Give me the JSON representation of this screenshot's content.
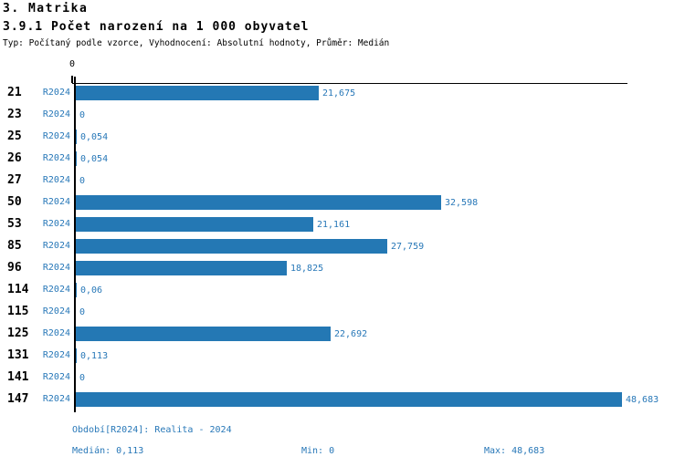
{
  "header": {
    "section_title": "3. Matrika",
    "chart_title": "3.9.1 Počet narození na 1 000 obyvatel",
    "subtitle": "Typ: Počítaný podle vzorce, Vyhodnocení: Absolutní hodnoty, Průměr: Medián"
  },
  "chart_data": {
    "type": "bar",
    "orientation": "horizontal",
    "title": "3.9.1 Počet narození na 1 000 obyvatel",
    "xlabel": "",
    "ylabel": "",
    "xlim": [
      0,
      49.5
    ],
    "grid": false,
    "legend": false,
    "axis_zero_label": "0",
    "categories": [
      "21",
      "23",
      "25",
      "26",
      "27",
      "50",
      "53",
      "85",
      "96",
      "114",
      "115",
      "125",
      "131",
      "141",
      "147"
    ],
    "series": [
      {
        "name": "R2024",
        "color": "#2478b4",
        "values": [
          21.675,
          0,
          0.054,
          0.054,
          0,
          32.598,
          21.161,
          27.759,
          18.825,
          0.06,
          0,
          22.692,
          0.113,
          0,
          48.683
        ],
        "value_labels": [
          "21,675",
          "0",
          "0,054",
          "0,054",
          "0",
          "32,598",
          "21,161",
          "27,759",
          "18,825",
          "0,06",
          "0",
          "22,692",
          "0,113",
          "0",
          "48,683"
        ]
      }
    ]
  },
  "footer": {
    "period_line": "Období[R2024]: Realita - 2024",
    "median": "Medián: 0,113",
    "min": "Min: 0",
    "max": "Max: 48,683"
  },
  "colors": {
    "bar": "#2478b4",
    "blue_text": "#2878b8",
    "text": "#000000",
    "background": "#ffffff"
  }
}
